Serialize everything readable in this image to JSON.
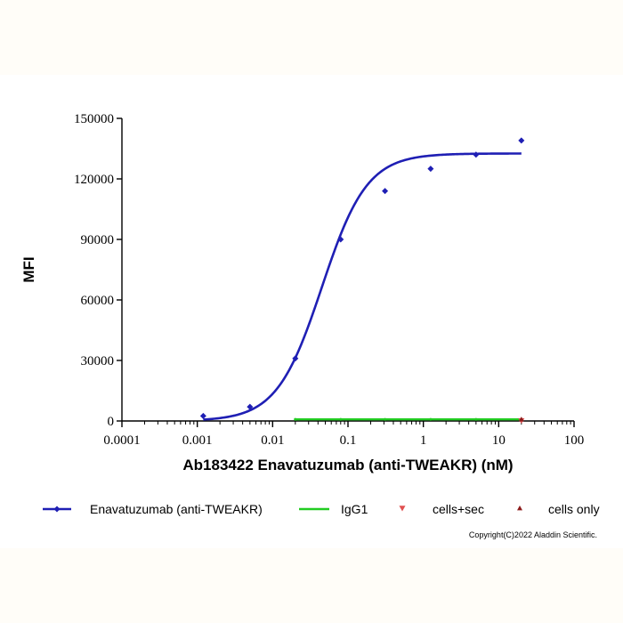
{
  "chart_data": {
    "type": "scatter",
    "xlabel": "Ab183422 Enavatuzumab (anti-TWEAKR) (nM)",
    "ylabel": "MFI",
    "x_scale": "log",
    "xlim": [
      0.0001,
      100
    ],
    "ylim": [
      0,
      150000
    ],
    "x_ticks": [
      "0.0001",
      "0.001",
      "0.01",
      "0.1",
      "1",
      "10",
      "100"
    ],
    "y_ticks": [
      "0",
      "30000",
      "60000",
      "90000",
      "120000",
      "150000"
    ],
    "grid": false,
    "legend_position": "bottom",
    "series": [
      {
        "name": "Enavatuzumab (anti-TWEAKR)",
        "color": "#1f1fb4",
        "marker": "diamond",
        "fit": "4PL",
        "fit_range": [
          0.0012,
          20
        ],
        "points": [
          {
            "x": 0.0012,
            "y": 2500
          },
          {
            "x": 0.005,
            "y": 7000
          },
          {
            "x": 0.02,
            "y": 31000
          },
          {
            "x": 0.08,
            "y": 90000
          },
          {
            "x": 0.31,
            "y": 114000
          },
          {
            "x": 1.25,
            "y": 125000
          },
          {
            "x": 5,
            "y": 132000
          },
          {
            "x": 20,
            "y": 139000
          }
        ]
      },
      {
        "name": "IgG1",
        "color": "#22cc22",
        "marker": "line",
        "points": [
          {
            "x": 0.02,
            "y": 800
          },
          {
            "x": 0.08,
            "y": 800
          },
          {
            "x": 0.31,
            "y": 800
          },
          {
            "x": 1.25,
            "y": 800
          },
          {
            "x": 5,
            "y": 800
          },
          {
            "x": 20,
            "y": 800
          }
        ]
      },
      {
        "name": "cells+sec",
        "color": "#e05050",
        "marker": "triangle-down",
        "points": [
          {
            "x": 20,
            "y": 600
          }
        ]
      },
      {
        "name": "cells only",
        "color": "#8b1a1a",
        "marker": "triangle-up",
        "points": [
          {
            "x": 20,
            "y": 400
          }
        ]
      }
    ],
    "footer": "Copyright(C)2022 Aladdin Scientific."
  }
}
